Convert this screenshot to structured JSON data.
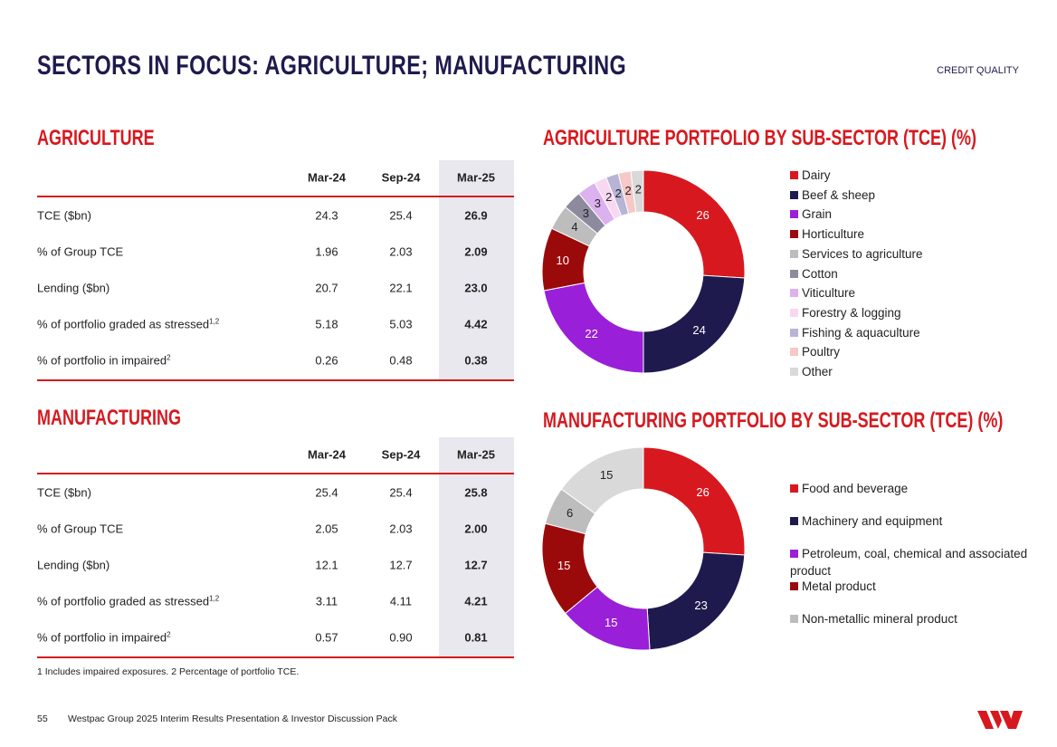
{
  "header": {
    "title": "SECTORS IN FOCUS: AGRICULTURE; MANUFACTURING",
    "section": "CREDIT QUALITY"
  },
  "tables": [
    {
      "title": "AGRICULTURE",
      "columns": [
        "Mar-24",
        "Sep-24",
        "Mar-25"
      ],
      "rows": [
        {
          "label": "TCE ($bn)",
          "values": [
            "24.3",
            "25.4",
            "26.9"
          ]
        },
        {
          "label": "% of Group TCE",
          "values": [
            "1.96",
            "2.03",
            "2.09"
          ]
        },
        {
          "label": "Lending ($bn)",
          "values": [
            "20.7",
            "22.1",
            "23.0"
          ]
        },
        {
          "label": "% of portfolio graded as stressed",
          "note": "1,2",
          "values": [
            "5.18",
            "5.03",
            "4.42"
          ]
        },
        {
          "label": "% of portfolio in impaired",
          "note": "2",
          "values": [
            "0.26",
            "0.48",
            "0.38"
          ]
        }
      ]
    },
    {
      "title": "MANUFACTURING",
      "columns": [
        "Mar-24",
        "Sep-24",
        "Mar-25"
      ],
      "rows": [
        {
          "label": "TCE ($bn)",
          "values": [
            "25.4",
            "25.4",
            "25.8"
          ]
        },
        {
          "label": "% of Group TCE",
          "values": [
            "2.05",
            "2.03",
            "2.00"
          ]
        },
        {
          "label": "Lending ($bn)",
          "values": [
            "12.1",
            "12.7",
            "12.7"
          ]
        },
        {
          "label": "% of portfolio graded as stressed",
          "note": "1,2",
          "values": [
            "3.11",
            "4.11",
            "4.21"
          ]
        },
        {
          "label": "% of portfolio in impaired",
          "note": "2",
          "values": [
            "0.57",
            "0.90",
            "0.81"
          ]
        }
      ]
    }
  ],
  "chart_data": [
    {
      "type": "pie",
      "donut": true,
      "title": "AGRICULTURE PORTFOLIO BY SUB-SECTOR (TCE) (%)",
      "categories": [
        "Dairy",
        "Beef & sheep",
        "Grain",
        "Horticulture",
        "Services to agriculture",
        "Cotton",
        "Viticulture",
        "Forestry & logging",
        "Fishing & aquaculture",
        "Poultry",
        "Other"
      ],
      "values": [
        26,
        24,
        22,
        10,
        4,
        3,
        3,
        2,
        2,
        2,
        2
      ],
      "colors": [
        "#d7191f",
        "#1f1a4d",
        "#9a1fd8",
        "#9b0a0a",
        "#bdbdbd",
        "#8e8a9d",
        "#dcb1ef",
        "#f8d7f3",
        "#b8b4d6",
        "#f6c8c8",
        "#d9d9d9"
      ]
    },
    {
      "type": "pie",
      "donut": true,
      "title": "MANUFACTURING PORTFOLIO  BY SUB-SECTOR (TCE) (%)",
      "categories": [
        "Food and beverage",
        "Machinery and equipment",
        "Petroleum, coal, chemical and associated product",
        "Metal product",
        "Non-metallic mineral product",
        null
      ],
      "values": [
        26,
        23,
        15,
        15,
        6,
        15
      ],
      "colors": [
        "#d7191f",
        "#1f1a4d",
        "#9a1fd8",
        "#9b0a0a",
        "#bdbdbd",
        "#d9d9d9"
      ]
    }
  ],
  "footnote": "1 Includes impaired exposures. 2 Percentage of portfolio TCE.",
  "footer": {
    "page": "55",
    "text": "Westpac Group 2025 Interim Results Presentation & Investor Discussion Pack"
  }
}
